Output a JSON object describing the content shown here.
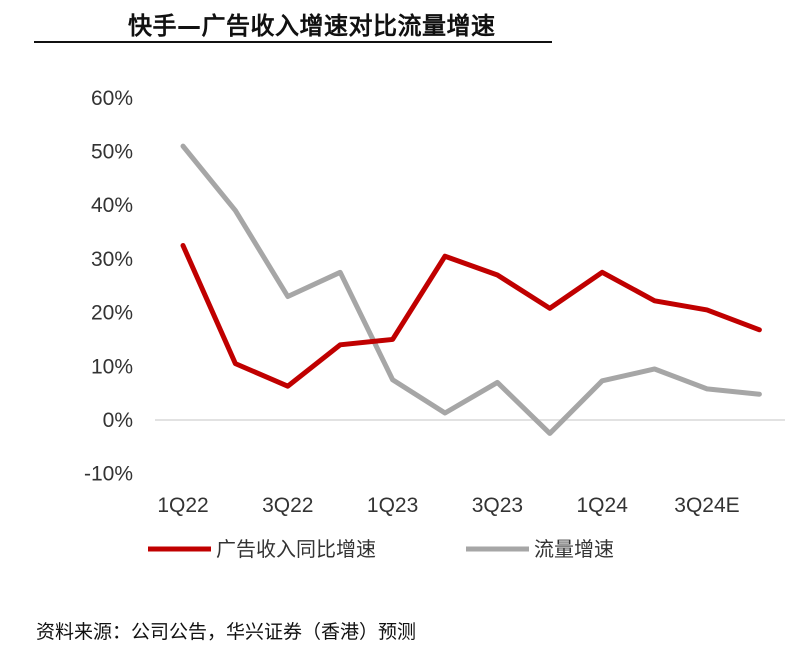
{
  "title": "快手—广告收入增速对比流量增速",
  "source": "资料来源：公司公告，华兴证券（香港）预测",
  "chart_data": {
    "type": "line",
    "title": "快手—广告收入增速对比流量增速",
    "x": [
      "1Q22",
      "2Q22",
      "3Q22",
      "4Q22",
      "1Q23",
      "2Q23",
      "3Q23",
      "4Q23",
      "1Q24",
      "2Q24",
      "3Q24E",
      "4Q24E"
    ],
    "x_tick_labels": [
      "1Q22",
      "3Q22",
      "1Q23",
      "3Q23",
      "1Q24",
      "3Q24E"
    ],
    "y_tick_labels": [
      "60%",
      "50%",
      "40%",
      "30%",
      "20%",
      "10%",
      "0%",
      "-10%"
    ],
    "ylim": [
      -10,
      60
    ],
    "y_unit": "%",
    "grid": false,
    "legend_position": "bottom",
    "series": [
      {
        "name": "广告收入同比增速",
        "color": "#c00000",
        "values": [
          32.5,
          10.5,
          6.3,
          14.0,
          15.0,
          30.5,
          27.0,
          20.8,
          27.5,
          22.2,
          20.5,
          16.8
        ]
      },
      {
        "name": "流量增速",
        "color": "#a6a6a6",
        "values": [
          51.0,
          39.0,
          23.0,
          27.5,
          7.5,
          1.3,
          7.0,
          -2.5,
          7.3,
          9.5,
          5.8,
          4.8
        ]
      }
    ]
  }
}
